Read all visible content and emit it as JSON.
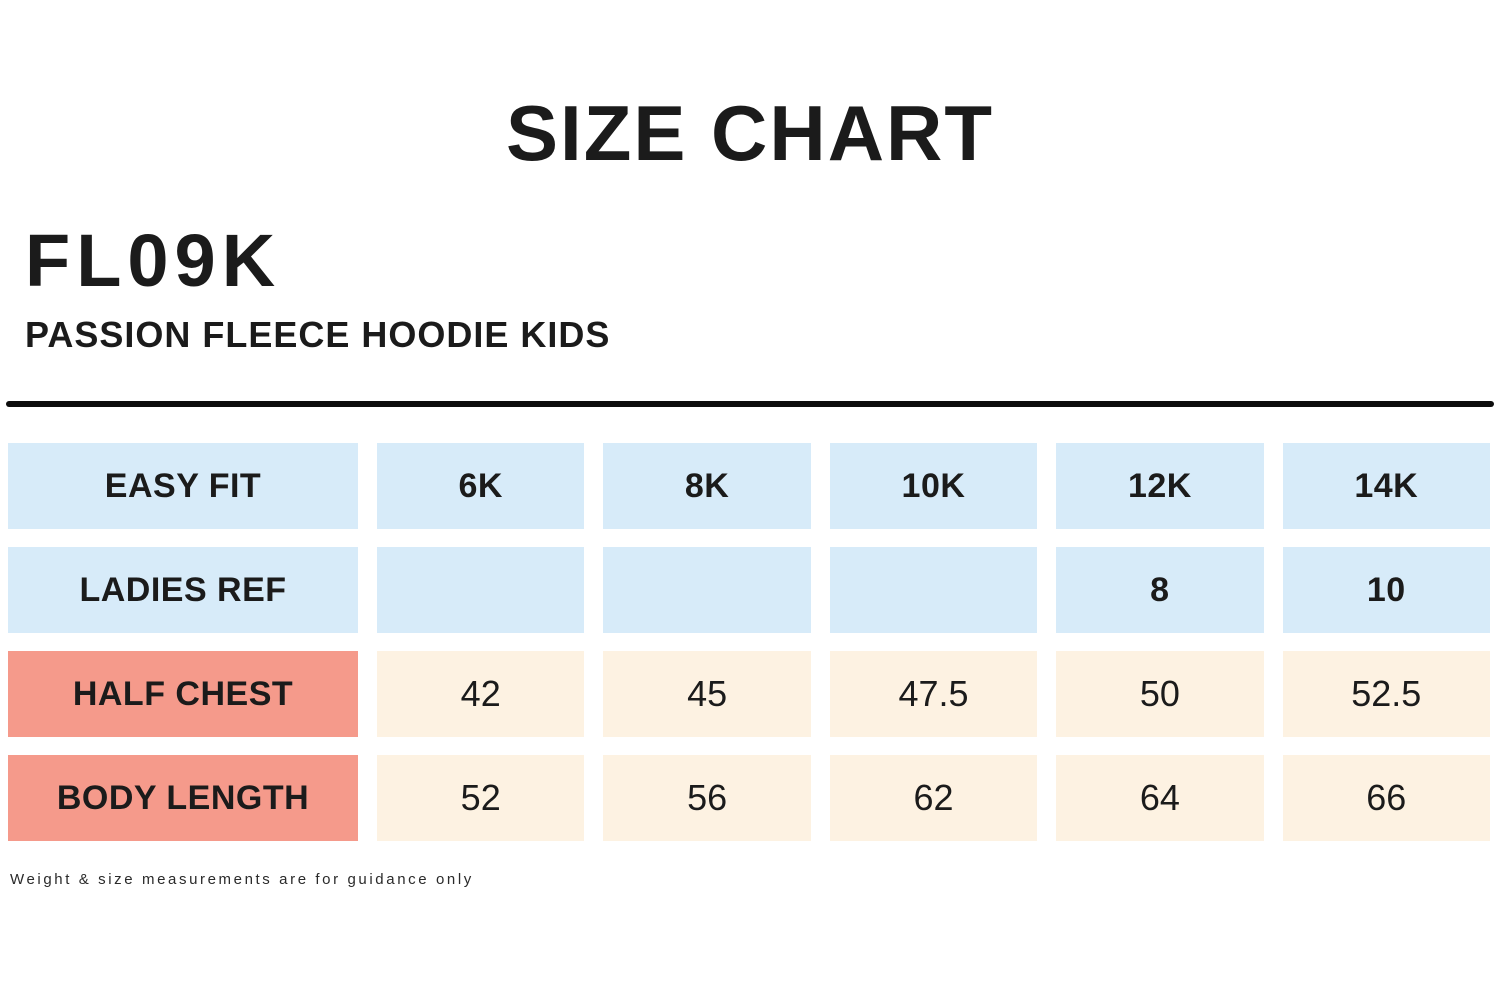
{
  "page": {
    "title": "SIZE CHART",
    "product_code": "FL09K",
    "product_name": "PASSION FLEECE HOODIE KIDS",
    "footnote": "Weight & size measurements are for guidance only"
  },
  "colors": {
    "header_blue": "#D7EBF9",
    "label_salmon": "#F59A8B",
    "value_cream": "#FDF2E2",
    "divider_black": "#0D0D0D",
    "text_dark": "#1B1B1B"
  },
  "table": {
    "rows": [
      {
        "label": "EASY FIT",
        "cells": [
          "6K",
          "8K",
          "10K",
          "12K",
          "14K"
        ]
      },
      {
        "label": "LADIES REF",
        "cells": [
          "",
          "",
          "",
          "8",
          "10"
        ]
      },
      {
        "label": "HALF CHEST",
        "cells": [
          "42",
          "45",
          "47.5",
          "50",
          "52.5"
        ]
      },
      {
        "label": "BODY LENGTH",
        "cells": [
          "52",
          "56",
          "62",
          "64",
          "66"
        ]
      }
    ]
  },
  "chart_data": {
    "type": "table",
    "title": "SIZE CHART",
    "subtitle": "FL09K - PASSION FLEECE HOODIE KIDS",
    "columns": [
      "EASY FIT",
      "6K",
      "8K",
      "10K",
      "12K",
      "14K"
    ],
    "rows": [
      [
        "LADIES REF",
        "",
        "",
        "",
        "8",
        "10"
      ],
      [
        "HALF CHEST",
        "42",
        "45",
        "47.5",
        "50",
        "52.5"
      ],
      [
        "BODY LENGTH",
        "52",
        "56",
        "62",
        "64",
        "66"
      ]
    ],
    "footnote": "Weight & size measurements are for guidance only"
  }
}
